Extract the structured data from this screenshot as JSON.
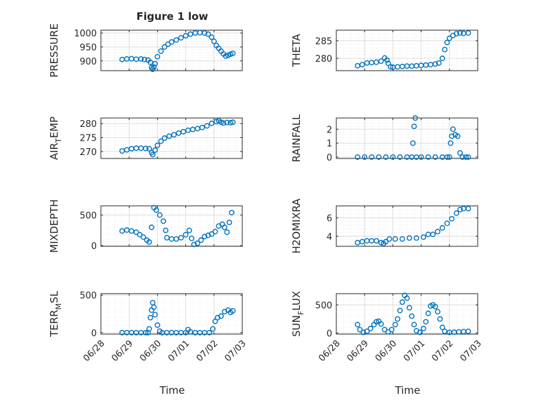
{
  "figure": {
    "title": "Figure 1 low",
    "xlabel": "Time",
    "marker_color": "#0072bd"
  },
  "chart_data": [
    {
      "type": "scatter",
      "title": "Figure 1 low",
      "xlabel": "",
      "ylabel": "PRESSURE",
      "xlim": [
        "06/28",
        "07/03"
      ],
      "ylim": [
        865,
        1010
      ],
      "yticks": [
        900,
        950,
        1000
      ],
      "xticks": [
        "06/28",
        "06/29",
        "06/30",
        "07/01",
        "07/02",
        "07/03"
      ],
      "grid": "major+minor",
      "points": [
        [
          "06/28 18:00",
          905
        ],
        [
          "06/28 22:00",
          907
        ],
        [
          "06/29 02:00",
          908
        ],
        [
          "06/29 06:00",
          906
        ],
        [
          "06/29 10:00",
          907
        ],
        [
          "06/29 13:00",
          905
        ],
        [
          "06/29 16:00",
          903
        ],
        [
          "06/29 18:00",
          895
        ],
        [
          "06/29 19:00",
          876
        ],
        [
          "06/29 20:00",
          870
        ],
        [
          "06/29 21:00",
          878
        ],
        [
          "06/29 22:00",
          890
        ],
        [
          "06/30 00:00",
          915
        ],
        [
          "06/30 03:00",
          935
        ],
        [
          "06/30 06:00",
          950
        ],
        [
          "06/30 09:00",
          960
        ],
        [
          "06/30 12:00",
          968
        ],
        [
          "06/30 16:00",
          975
        ],
        [
          "06/30 20:00",
          983
        ],
        [
          "07/01 00:00",
          990
        ],
        [
          "07/01 04:00",
          996
        ],
        [
          "07/01 08:00",
          1000
        ],
        [
          "07/01 12:00",
          1001
        ],
        [
          "07/01 16:00",
          1000
        ],
        [
          "07/01 19:00",
          996
        ],
        [
          "07/01 22:00",
          985
        ],
        [
          "07/02 00:00",
          970
        ],
        [
          "07/02 02:00",
          955
        ],
        [
          "07/02 04:00",
          945
        ],
        [
          "07/02 06:00",
          935
        ],
        [
          "07/02 08:00",
          925
        ],
        [
          "07/02 10:00",
          917
        ],
        [
          "07/02 12:00",
          920
        ],
        [
          "07/02 14:00",
          924
        ],
        [
          "07/02 16:00",
          927
        ]
      ]
    },
    {
      "type": "scatter",
      "ylabel": "THETA",
      "xlim": [
        "06/28",
        "07/03"
      ],
      "ylim": [
        276.5,
        288
      ],
      "yticks": [
        280,
        285
      ],
      "xticks": [
        "06/28",
        "06/29",
        "06/30",
        "07/01",
        "07/02",
        "07/03"
      ],
      "grid": "major+minor",
      "points": [
        [
          "06/28 18:00",
          277.9
        ],
        [
          "06/28 22:00",
          278.2
        ],
        [
          "06/29 02:00",
          278.7
        ],
        [
          "06/29 06:00",
          278.8
        ],
        [
          "06/29 10:00",
          278.9
        ],
        [
          "06/29 14:00",
          279.2
        ],
        [
          "06/29 17:00",
          280.1
        ],
        [
          "06/29 19:00",
          279.5
        ],
        [
          "06/29 20:00",
          278.6
        ],
        [
          "06/29 22:00",
          277.6
        ],
        [
          "06/30 00:00",
          277.5
        ],
        [
          "06/30 04:00",
          277.6
        ],
        [
          "06/30 08:00",
          277.7
        ],
        [
          "06/30 12:00",
          277.8
        ],
        [
          "06/30 16:00",
          277.8
        ],
        [
          "06/30 20:00",
          277.9
        ],
        [
          "07/01 00:00",
          278.0
        ],
        [
          "07/01 04:00",
          278.1
        ],
        [
          "07/01 08:00",
          278.2
        ],
        [
          "07/01 12:00",
          278.4
        ],
        [
          "07/01 15:00",
          278.7
        ],
        [
          "07/01 18:00",
          280.0
        ],
        [
          "07/01 20:00",
          282.5
        ],
        [
          "07/01 22:00",
          284.5
        ],
        [
          "07/02 00:00",
          285.7
        ],
        [
          "07/02 03:00",
          286.5
        ],
        [
          "07/02 06:00",
          287.0
        ],
        [
          "07/02 09:00",
          287.2
        ],
        [
          "07/02 12:00",
          287.1
        ],
        [
          "07/02 16:00",
          287.2
        ]
      ]
    },
    {
      "type": "scatter",
      "ylabel": "AIR_TEMP",
      "xlim": [
        "06/28",
        "07/03"
      ],
      "ylim": [
        267.5,
        282
      ],
      "yticks": [
        270,
        275,
        280
      ],
      "xticks": [
        "06/28",
        "06/29",
        "06/30",
        "07/01",
        "07/02",
        "07/03"
      ],
      "grid": "major+minor",
      "points": [
        [
          "06/28 18:00",
          270.2
        ],
        [
          "06/28 22:00",
          270.6
        ],
        [
          "06/29 02:00",
          271.0
        ],
        [
          "06/29 06:00",
          271.2
        ],
        [
          "06/29 10:00",
          271.2
        ],
        [
          "06/29 14:00",
          271.1
        ],
        [
          "06/29 17:00",
          271.0
        ],
        [
          "06/29 19:00",
          269.6
        ],
        [
          "06/29 20:00",
          268.9
        ],
        [
          "06/29 22:00",
          270.5
        ],
        [
          "06/30 00:00",
          272.2
        ],
        [
          "06/30 03:00",
          273.7
        ],
        [
          "06/30 06:00",
          274.8
        ],
        [
          "06/30 10:00",
          275.5
        ],
        [
          "06/30 14:00",
          276.0
        ],
        [
          "06/30 18:00",
          276.6
        ],
        [
          "06/30 22:00",
          277.1
        ],
        [
          "07/01 02:00",
          277.6
        ],
        [
          "07/01 06:00",
          277.9
        ],
        [
          "07/01 10:00",
          278.2
        ],
        [
          "07/01 14:00",
          278.6
        ],
        [
          "07/01 18:00",
          279.2
        ],
        [
          "07/01 22:00",
          280.1
        ],
        [
          "07/02 02:00",
          280.7
        ],
        [
          "07/02 04:00",
          281.0
        ],
        [
          "07/02 06:00",
          280.5
        ],
        [
          "07/02 08:00",
          280.2
        ],
        [
          "07/02 11:00",
          280.4
        ],
        [
          "07/02 14:00",
          280.3
        ],
        [
          "07/02 16:00",
          280.5
        ]
      ]
    },
    {
      "type": "scatter",
      "ylabel": "RAINFALL",
      "xlim": [
        "06/28",
        "07/03"
      ],
      "ylim": [
        -0.1,
        2.8
      ],
      "yticks": [
        0,
        1,
        2
      ],
      "xticks": [
        "06/28",
        "06/29",
        "06/30",
        "07/01",
        "07/02",
        "07/03"
      ],
      "grid": "major+minor",
      "points": [
        [
          "06/28 18:00",
          0
        ],
        [
          "06/29 00:00",
          0
        ],
        [
          "06/29 06:00",
          0
        ],
        [
          "06/29 12:00",
          0
        ],
        [
          "06/29 18:00",
          0
        ],
        [
          "06/30 00:00",
          0
        ],
        [
          "06/30 06:00",
          0
        ],
        [
          "06/30 12:00",
          0
        ],
        [
          "06/30 16:00",
          0
        ],
        [
          "06/30 17:00",
          1.0
        ],
        [
          "06/30 18:00",
          2.2
        ],
        [
          "06/30 19:00",
          2.8
        ],
        [
          "06/30 20:00",
          0
        ],
        [
          "07/01 00:00",
          0
        ],
        [
          "07/01 06:00",
          0
        ],
        [
          "07/01 12:00",
          0
        ],
        [
          "07/01 18:00",
          0
        ],
        [
          "07/01 22:00",
          0
        ],
        [
          "07/02 00:00",
          0
        ],
        [
          "07/02 01:00",
          1.0
        ],
        [
          "07/02 02:00",
          1.5
        ],
        [
          "07/02 03:00",
          2.0
        ],
        [
          "07/02 05:00",
          1.6
        ],
        [
          "07/02 07:00",
          1.5
        ],
        [
          "07/02 09:00",
          0.3
        ],
        [
          "07/02 11:00",
          0
        ],
        [
          "07/02 14:00",
          0
        ],
        [
          "07/02 16:00",
          0
        ]
      ]
    },
    {
      "type": "scatter",
      "ylabel": "MIXDEPTH",
      "xlim": [
        "06/28",
        "07/03"
      ],
      "ylim": [
        -10,
        650
      ],
      "yticks": [
        0,
        500
      ],
      "xticks": [
        "06/28",
        "06/29",
        "06/30",
        "07/01",
        "07/02",
        "07/03"
      ],
      "grid": "major+minor",
      "points": [
        [
          "06/28 18:00",
          240
        ],
        [
          "06/28 22:00",
          255
        ],
        [
          "06/29 02:00",
          240
        ],
        [
          "06/29 06:00",
          220
        ],
        [
          "06/29 09:00",
          180
        ],
        [
          "06/29 12:00",
          140
        ],
        [
          "06/29 15:00",
          90
        ],
        [
          "06/29 17:00",
          60
        ],
        [
          "06/29 19:00",
          300
        ],
        [
          "06/29 21:00",
          620
        ],
        [
          "06/29 23:00",
          580
        ],
        [
          "06/30 02:00",
          500
        ],
        [
          "06/30 05:00",
          400
        ],
        [
          "06/30 07:00",
          250
        ],
        [
          "06/30 08:00",
          130
        ],
        [
          "06/30 12:00",
          110
        ],
        [
          "06/30 16:00",
          110
        ],
        [
          "06/30 20:00",
          130
        ],
        [
          "07/01 00:00",
          180
        ],
        [
          "07/01 03:00",
          250
        ],
        [
          "07/01 05:00",
          120
        ],
        [
          "07/01 07:00",
          20
        ],
        [
          "07/01 10:00",
          40
        ],
        [
          "07/01 13:00",
          90
        ],
        [
          "07/01 16:00",
          150
        ],
        [
          "07/01 19:00",
          170
        ],
        [
          "07/01 22:00",
          190
        ],
        [
          "07/02 01:00",
          230
        ],
        [
          "07/02 04:00",
          320
        ],
        [
          "07/02 07:00",
          350
        ],
        [
          "07/02 09:00",
          300
        ],
        [
          "07/02 11:00",
          220
        ],
        [
          "07/02 13:00",
          380
        ],
        [
          "07/02 15:00",
          540
        ]
      ]
    },
    {
      "type": "scatter",
      "ylabel": "H2OMIXRA",
      "xlim": [
        "06/28",
        "07/03"
      ],
      "ylim": [
        2.9,
        7.3
      ],
      "yticks": [
        4,
        6
      ],
      "xticks": [
        "06/28",
        "06/29",
        "06/30",
        "07/01",
        "07/02",
        "07/03"
      ],
      "grid": "major+minor",
      "points": [
        [
          "06/28 18:00",
          3.3
        ],
        [
          "06/28 22:00",
          3.4
        ],
        [
          "06/29 02:00",
          3.5
        ],
        [
          "06/29 06:00",
          3.5
        ],
        [
          "06/29 10:00",
          3.5
        ],
        [
          "06/29 14:00",
          3.3
        ],
        [
          "06/29 16:00",
          3.2
        ],
        [
          "06/29 18:00",
          3.4
        ],
        [
          "06/29 21:00",
          3.7
        ],
        [
          "06/30 02:00",
          3.7
        ],
        [
          "06/30 08:00",
          3.7
        ],
        [
          "06/30 14:00",
          3.8
        ],
        [
          "06/30 20:00",
          3.8
        ],
        [
          "07/01 02:00",
          3.9
        ],
        [
          "07/01 06:00",
          4.2
        ],
        [
          "07/01 10:00",
          4.2
        ],
        [
          "07/01 14:00",
          4.5
        ],
        [
          "07/01 18:00",
          4.9
        ],
        [
          "07/01 22:00",
          5.4
        ],
        [
          "07/02 02:00",
          5.9
        ],
        [
          "07/02 06:00",
          6.5
        ],
        [
          "07/02 09:00",
          6.9
        ],
        [
          "07/02 12:00",
          7.0
        ],
        [
          "07/02 16:00",
          7.0
        ]
      ]
    },
    {
      "type": "scatter",
      "ylabel": "TERR_MSL",
      "xlim": [
        "06/28",
        "07/03"
      ],
      "ylim": [
        -20,
        520
      ],
      "yticks": [
        0,
        500
      ],
      "xticks": [
        "06/28",
        "06/29",
        "06/30",
        "07/01",
        "07/02",
        "07/03"
      ],
      "grid": "major+minor",
      "points": [
        [
          "06/28 18:00",
          0
        ],
        [
          "06/28 22:00",
          0
        ],
        [
          "06/29 02:00",
          0
        ],
        [
          "06/29 06:00",
          0
        ],
        [
          "06/29 10:00",
          0
        ],
        [
          "06/29 14:00",
          0
        ],
        [
          "06/29 16:00",
          0
        ],
        [
          "06/29 17:00",
          50
        ],
        [
          "06/29 18:00",
          200
        ],
        [
          "06/29 19:00",
          300
        ],
        [
          "06/29 20:00",
          400
        ],
        [
          "06/29 21:00",
          340
        ],
        [
          "06/29 22:00",
          240
        ],
        [
          "06/30 00:00",
          100
        ],
        [
          "06/30 02:00",
          20
        ],
        [
          "06/30 04:00",
          0
        ],
        [
          "06/30 08:00",
          0
        ],
        [
          "06/30 12:00",
          0
        ],
        [
          "06/30 16:00",
          0
        ],
        [
          "06/30 20:00",
          0
        ],
        [
          "07/01 00:00",
          0
        ],
        [
          "07/01 02:00",
          40
        ],
        [
          "07/01 04:00",
          10
        ],
        [
          "07/01 08:00",
          0
        ],
        [
          "07/01 12:00",
          0
        ],
        [
          "07/01 16:00",
          0
        ],
        [
          "07/01 20:00",
          0
        ],
        [
          "07/01 23:00",
          50
        ],
        [
          "07/02 01:00",
          150
        ],
        [
          "07/02 03:00",
          200
        ],
        [
          "07/02 06:00",
          220
        ],
        [
          "07/02 09:00",
          280
        ],
        [
          "07/02 12:00",
          300
        ],
        [
          "07/02 14:00",
          270
        ],
        [
          "07/02 16:00",
          290
        ]
      ]
    },
    {
      "type": "scatter",
      "ylabel": "SUN_FLUX",
      "xlim": [
        "06/28",
        "07/03"
      ],
      "ylim": [
        -20,
        700
      ],
      "yticks": [
        0,
        500
      ],
      "xticks": [
        "06/28",
        "06/29",
        "06/30",
        "07/01",
        "07/02",
        "07/03"
      ],
      "grid": "major+minor",
      "points": [
        [
          "06/28 18:00",
          150
        ],
        [
          "06/28 20:00",
          60
        ],
        [
          "06/28 23:00",
          10
        ],
        [
          "06/29 02:00",
          30
        ],
        [
          "06/29 05:00",
          80
        ],
        [
          "06/29 08:00",
          150
        ],
        [
          "06/29 10:00",
          200
        ],
        [
          "06/29 12:00",
          210
        ],
        [
          "06/29 14:00",
          160
        ],
        [
          "06/29 17:00",
          60
        ],
        [
          "06/29 20:00",
          20
        ],
        [
          "06/29 23:00",
          60
        ],
        [
          "06/30 02:00",
          150
        ],
        [
          "06/30 04:00",
          250
        ],
        [
          "06/30 06:00",
          400
        ],
        [
          "06/30 08:00",
          550
        ],
        [
          "06/30 10:00",
          670
        ],
        [
          "06/30 12:00",
          620
        ],
        [
          "06/30 14:00",
          450
        ],
        [
          "06/30 16:00",
          300
        ],
        [
          "06/30 18:00",
          150
        ],
        [
          "06/30 20:00",
          40
        ],
        [
          "06/30 23:00",
          10
        ],
        [
          "07/01 02:00",
          80
        ],
        [
          "07/01 04:00",
          200
        ],
        [
          "07/01 06:00",
          350
        ],
        [
          "07/01 08:00",
          480
        ],
        [
          "07/01 10:00",
          500
        ],
        [
          "07/01 12:00",
          470
        ],
        [
          "07/01 14:00",
          380
        ],
        [
          "07/01 16:00",
          250
        ],
        [
          "07/01 18:00",
          100
        ],
        [
          "07/01 20:00",
          30
        ],
        [
          "07/02 00:00",
          10
        ],
        [
          "07/02 04:00",
          15
        ],
        [
          "07/02 08:00",
          20
        ],
        [
          "07/02 12:00",
          25
        ],
        [
          "07/02 16:00",
          30
        ]
      ]
    }
  ]
}
